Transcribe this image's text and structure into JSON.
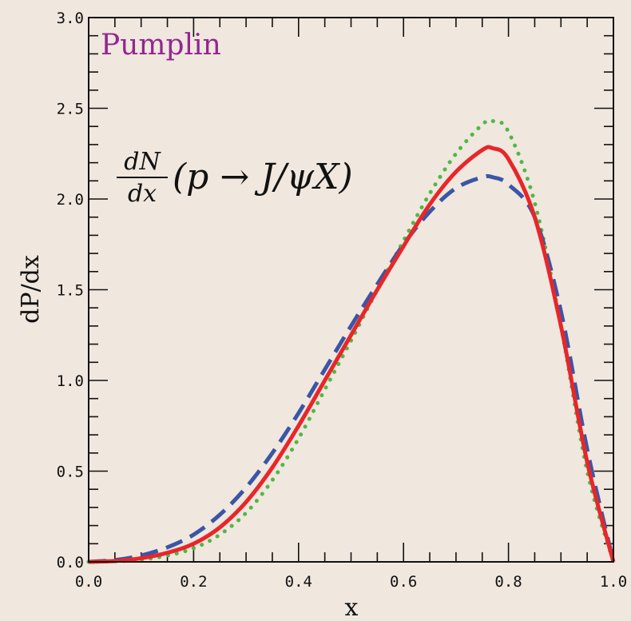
{
  "chart_data": {
    "type": "line",
    "xlabel": "x",
    "ylabel": "dP/dx",
    "xlim": [
      0.0,
      1.0
    ],
    "ylim": [
      0.0,
      3.0
    ],
    "xticks": [
      "0.0",
      "0.2",
      "0.4",
      "0.6",
      "0.8",
      "1.0"
    ],
    "yticks": [
      "0.0",
      "0.5",
      "1.0",
      "1.5",
      "2.0",
      "2.5",
      "3.0"
    ],
    "grid": false,
    "annotations": {
      "brand": "Pumplin",
      "formula_numerator": "dN",
      "formula_denominator": "dx",
      "formula_rest": "(p → J/ψX)"
    },
    "series": [
      {
        "color": "#e8262a",
        "style": "solid",
        "x": [
          0.0,
          0.05,
          0.1,
          0.15,
          0.2,
          0.25,
          0.3,
          0.35,
          0.4,
          0.45,
          0.5,
          0.55,
          0.6,
          0.65,
          0.7,
          0.75,
          0.77,
          0.8,
          0.85,
          0.9,
          0.95,
          1.0
        ],
        "y": [
          0.0,
          0.005,
          0.02,
          0.05,
          0.1,
          0.19,
          0.33,
          0.52,
          0.75,
          1.0,
          1.25,
          1.5,
          1.74,
          1.97,
          2.15,
          2.27,
          2.28,
          2.22,
          1.9,
          1.3,
          0.55,
          0.0
        ]
      },
      {
        "color": "#3a56a6",
        "style": "dashed",
        "x": [
          0.0,
          0.05,
          0.1,
          0.15,
          0.2,
          0.25,
          0.3,
          0.35,
          0.4,
          0.45,
          0.5,
          0.55,
          0.6,
          0.65,
          0.7,
          0.75,
          0.77,
          0.8,
          0.85,
          0.9,
          0.95,
          1.0
        ],
        "y": [
          0.0,
          0.01,
          0.035,
          0.08,
          0.15,
          0.26,
          0.41,
          0.6,
          0.82,
          1.06,
          1.3,
          1.53,
          1.75,
          1.93,
          2.06,
          2.12,
          2.12,
          2.08,
          1.9,
          1.38,
          0.62,
          0.0
        ]
      },
      {
        "color": "#4fb848",
        "style": "dotted",
        "x": [
          0.0,
          0.05,
          0.1,
          0.15,
          0.2,
          0.25,
          0.3,
          0.35,
          0.4,
          0.45,
          0.5,
          0.55,
          0.6,
          0.65,
          0.7,
          0.75,
          0.77,
          0.8,
          0.85,
          0.9,
          0.95,
          1.0
        ],
        "y": [
          0.0,
          0.003,
          0.012,
          0.035,
          0.075,
          0.15,
          0.27,
          0.45,
          0.68,
          0.95,
          1.22,
          1.5,
          1.77,
          2.03,
          2.25,
          2.41,
          2.43,
          2.37,
          1.98,
          1.3,
          0.5,
          0.0
        ]
      }
    ]
  }
}
